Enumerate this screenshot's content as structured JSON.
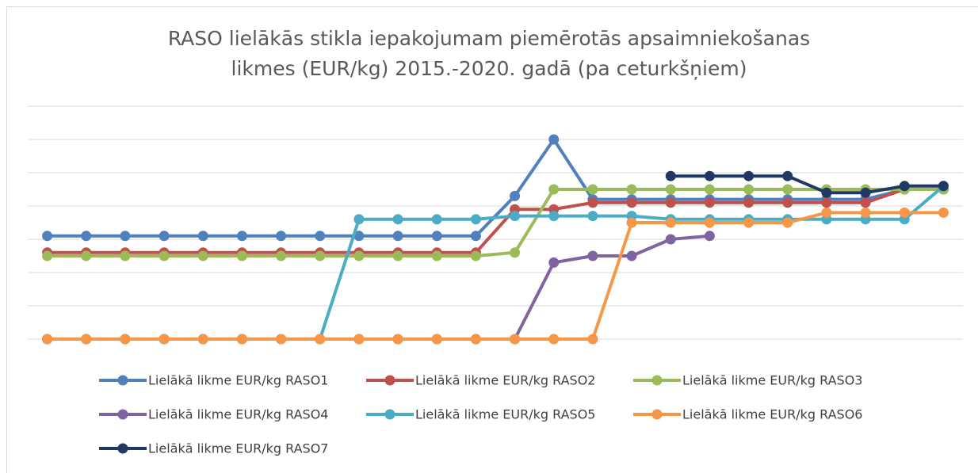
{
  "chart_data": {
    "type": "line",
    "title": [
      "RASO lielākās stikla iepakojumam piemērotās apsaimniekošanas",
      "likmes (EUR/kg) 2015.-2020. gadā (pa ceturkšņiem)"
    ],
    "categories": [
      null,
      null,
      null,
      null,
      null,
      null,
      null,
      null,
      null,
      null,
      null,
      null,
      null,
      null,
      null,
      null,
      null,
      null,
      null,
      null,
      null,
      null,
      null,
      null
    ],
    "ylim": [
      0,
      0.07
    ],
    "yticks": [
      0,
      0.01,
      0.02,
      0.03,
      0.04,
      0.05,
      0.06,
      0.07
    ],
    "grid": true,
    "series": [
      {
        "name": "Lielākā likme EUR/kg RASO1",
        "color": "#4f81bd",
        "values": [
          0.031,
          0.031,
          0.031,
          0.031,
          0.031,
          0.031,
          0.031,
          0.031,
          0.031,
          0.031,
          0.031,
          0.031,
          0.043,
          0.06,
          0.042,
          0.042,
          0.042,
          0.042,
          0.042,
          0.042,
          0.042,
          0.042,
          0.045,
          0.045
        ]
      },
      {
        "name": "Lielākā likme EUR/kg RASO2",
        "color": "#c0504d",
        "values": [
          0.026,
          0.026,
          0.026,
          0.026,
          0.026,
          0.026,
          0.026,
          0.026,
          0.026,
          0.026,
          0.026,
          0.026,
          0.039,
          0.039,
          0.041,
          0.041,
          0.041,
          0.041,
          0.041,
          0.041,
          0.041,
          0.041,
          0.045,
          0.045
        ]
      },
      {
        "name": "Lielākā likme EUR/kg RASO3",
        "color": "#9bbb59",
        "values": [
          0.025,
          0.025,
          0.025,
          0.025,
          0.025,
          0.025,
          0.025,
          0.025,
          0.025,
          0.025,
          0.025,
          0.025,
          0.026,
          0.045,
          0.045,
          0.045,
          0.045,
          0.045,
          0.045,
          0.045,
          0.045,
          0.045,
          0.045,
          0.045
        ]
      },
      {
        "name": "Lielākā likme EUR/kg RASO4",
        "color": "#8064a2",
        "values": [
          0,
          0,
          0,
          0,
          0,
          0,
          0,
          0,
          0,
          0,
          0,
          0,
          0,
          0.023,
          0.025,
          0.025,
          0.03,
          0.031,
          null,
          null,
          null,
          null,
          null,
          null
        ]
      },
      {
        "name": "Lielākā likme EUR/kg RASO5",
        "color": "#4bacc6",
        "values": [
          0,
          0,
          0,
          0,
          0,
          0,
          0,
          0,
          0.036,
          0.036,
          0.036,
          0.036,
          0.037,
          0.037,
          0.037,
          0.037,
          0.036,
          0.036,
          0.036,
          0.036,
          0.036,
          0.036,
          0.036,
          0.046
        ]
      },
      {
        "name": "Lielākā likme EUR/kg RASO6",
        "color": "#f79646",
        "values": [
          0,
          0,
          0,
          0,
          0,
          0,
          0,
          0,
          0,
          0,
          0,
          0,
          0,
          0,
          0,
          0.035,
          0.035,
          0.035,
          0.035,
          0.035,
          0.038,
          0.038,
          0.038,
          0.038
        ]
      },
      {
        "name": "Lielākā likme EUR/kg RASO7",
        "color": "#1f3864",
        "values": [
          null,
          null,
          null,
          null,
          null,
          null,
          null,
          null,
          null,
          null,
          null,
          null,
          null,
          null,
          null,
          null,
          0.049,
          0.049,
          0.049,
          0.049,
          0.044,
          0.044,
          0.046,
          0.046
        ]
      }
    ]
  }
}
